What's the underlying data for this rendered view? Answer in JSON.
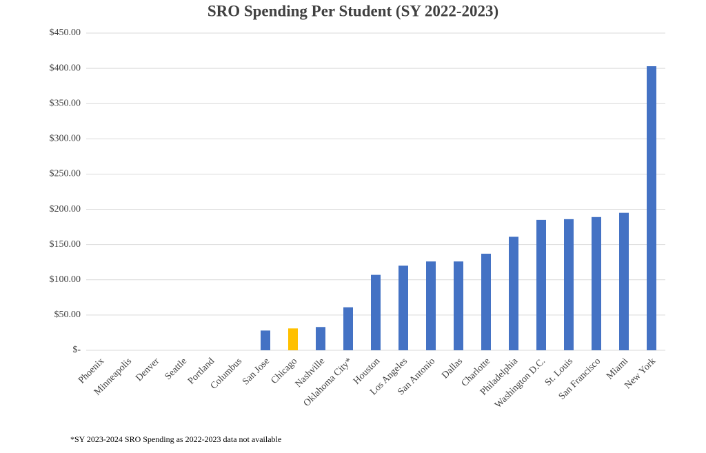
{
  "chart_data": {
    "type": "bar",
    "title": "SRO Spending Per Student (SY 2022-2023)",
    "categories": [
      "Phoenix",
      "Minneapolis",
      "Denver",
      "Seattle",
      "Portland",
      "Columbus",
      "San Jose",
      "Chicago",
      "Nashville",
      "Oklahoma City*",
      "Houston",
      "Los Angeles",
      "San Antonio",
      "Dallas",
      "Charlotte",
      "Philadelphia",
      "Washington D.C.",
      "St. Louis",
      "San Francisco",
      "Miami",
      "New York"
    ],
    "values": [
      0,
      0,
      0,
      0,
      0,
      0,
      28,
      31,
      33,
      61,
      107,
      120,
      126,
      126,
      137,
      161,
      185,
      186,
      189,
      195,
      403
    ],
    "colors": [
      "#4472c4",
      "#4472c4",
      "#4472c4",
      "#4472c4",
      "#4472c4",
      "#4472c4",
      "#4472c4",
      "#ffc000",
      "#4472c4",
      "#4472c4",
      "#4472c4",
      "#4472c4",
      "#4472c4",
      "#4472c4",
      "#4472c4",
      "#4472c4",
      "#4472c4",
      "#4472c4",
      "#4472c4",
      "#4472c4",
      "#4472c4"
    ],
    "ylim": [
      0,
      450
    ],
    "yticks": [
      {
        "value": 0,
        "label": "$-"
      },
      {
        "value": 50,
        "label": "$50.00"
      },
      {
        "value": 100,
        "label": "$100.00"
      },
      {
        "value": 150,
        "label": "$150.00"
      },
      {
        "value": 200,
        "label": "$200.00"
      },
      {
        "value": 250,
        "label": "$250.00"
      },
      {
        "value": 300,
        "label": "$300.00"
      },
      {
        "value": 350,
        "label": "$350.00"
      },
      {
        "value": 400,
        "label": "$400.00"
      },
      {
        "value": 450,
        "label": "$450.00"
      }
    ],
    "grid": true,
    "footnote": "*SY 2023-2024 SRO Spending as 2022-2023 data not available"
  }
}
